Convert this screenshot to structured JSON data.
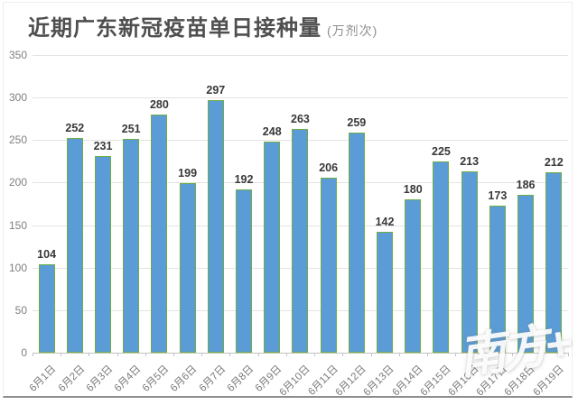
{
  "card": {
    "title": "近期广东新冠疫苗单日接种量",
    "title_suffix": "(万剂次)",
    "watermark": "南方+"
  },
  "chart_data": {
    "type": "bar",
    "title": "近期广东新冠疫苗单日接种量",
    "unit_label": "(万剂次)",
    "categories": [
      "6月1日",
      "6月2日",
      "6月3日",
      "6月4日",
      "6月5日",
      "6月6日",
      "6月7日",
      "6月8日",
      "6月9日",
      "6月10日",
      "6月11日",
      "6月12日",
      "6月13日",
      "6月14日",
      "6月15日",
      "6月16日",
      "6月17日",
      "6月18日",
      "6月19日"
    ],
    "values": [
      104,
      252,
      231,
      251,
      280,
      199,
      297,
      192,
      248,
      263,
      206,
      259,
      142,
      180,
      225,
      213,
      173,
      186,
      212
    ],
    "xlabel": "",
    "ylabel": "",
    "ylim": [
      0,
      350
    ],
    "yticks": [
      0,
      50,
      100,
      150,
      200,
      250,
      300,
      350
    ],
    "grid": true,
    "legend": "none",
    "data_labels": true,
    "colors": {
      "bar_fill": "#5b9cd6",
      "bar_border": "#6fad47",
      "gridline": "#e3e3e3",
      "axis_line": "#c3c3c3",
      "tick_label": "#7f7f7f",
      "value_label": "#383838",
      "title": "#4f4f4f"
    }
  }
}
